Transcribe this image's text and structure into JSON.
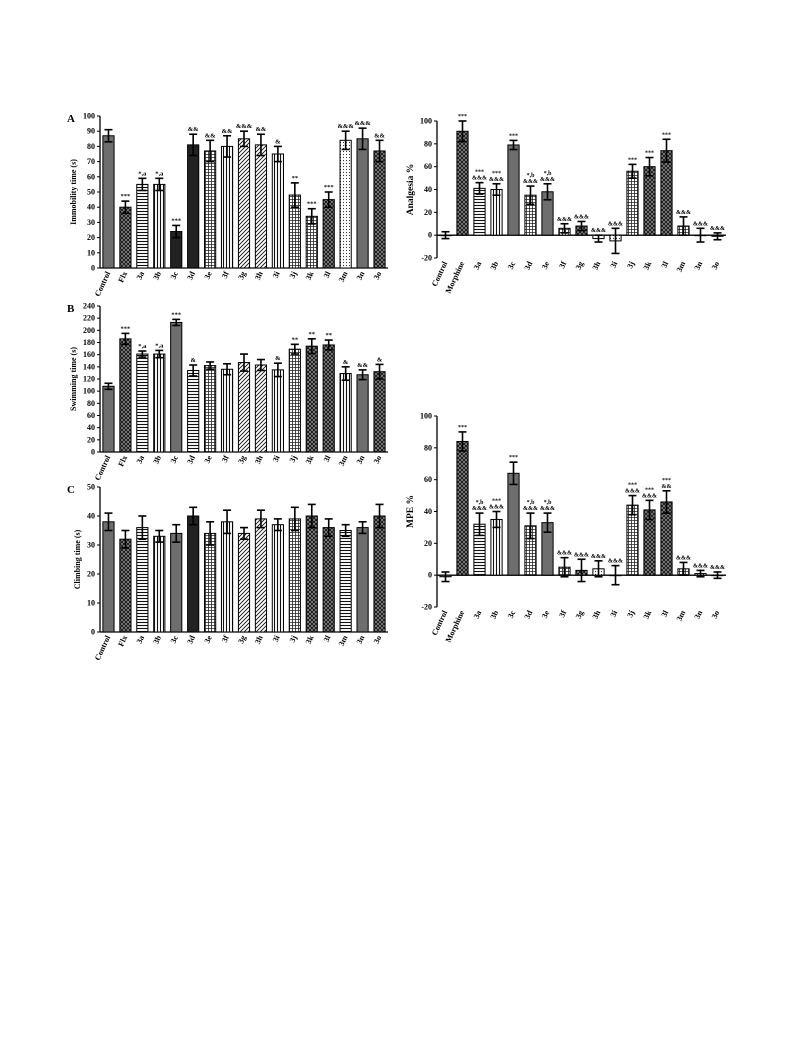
{
  "panel_labels": {
    "A": "A",
    "B": "B",
    "C": "C"
  },
  "colors": {
    "bar_fill": "#6e6e6e",
    "dark": "#222222",
    "ink": "#000000",
    "background": "#ffffff"
  },
  "chart_data": [
    {
      "id": "immobility",
      "type": "bar",
      "ylabel": "Immobility time (s)",
      "ylim": [
        0,
        100
      ],
      "ytick_step": 10,
      "categories": [
        "Control",
        "Flx",
        "3a",
        "3b",
        "3c",
        "3d",
        "3e",
        "3f",
        "3g",
        "3h",
        "3i",
        "3j",
        "3k",
        "3l",
        "3m",
        "3n",
        "3o"
      ],
      "values": [
        87,
        40,
        55,
        55,
        24,
        81,
        77,
        80,
        85,
        81,
        75,
        48,
        34,
        45,
        84,
        85,
        77
      ],
      "errors": [
        4,
        4,
        4,
        4,
        4,
        7,
        7,
        7,
        5,
        7,
        5,
        8,
        5,
        5,
        6,
        7,
        7
      ],
      "annotations": [
        "",
        "***",
        "*,a",
        "*,a",
        "***",
        "&&",
        "&&",
        "&&",
        "&&&",
        "&&",
        "&",
        "**",
        "***",
        "***",
        "&&&",
        "&&&",
        "&&"
      ],
      "patterns": [
        "solid",
        "cross",
        "hlines",
        "vlines",
        "dark",
        "dark",
        "grid",
        "vlines",
        "diag",
        "diag",
        "vlines",
        "grid",
        "grid",
        "cross",
        "dots",
        "solid",
        "cross"
      ]
    },
    {
      "id": "analgesia",
      "type": "bar",
      "ylabel": "Analgesia %",
      "ylim": [
        -20,
        100
      ],
      "ytick_step": 20,
      "categories": [
        "Control",
        "Morphine",
        "3a",
        "3b",
        "3c",
        "3d",
        "3e",
        "3f",
        "3g",
        "3h",
        "3i",
        "3j",
        "3k",
        "3l",
        "3m",
        "3n",
        "3o"
      ],
      "values": [
        0,
        91,
        41,
        40,
        79,
        35,
        38,
        6,
        8,
        -3,
        -5,
        56,
        60,
        74,
        8,
        0,
        -1
      ],
      "errors": [
        3,
        9,
        5,
        5,
        4,
        8,
        7,
        4,
        4,
        3,
        11,
        6,
        8,
        10,
        8,
        6,
        3
      ],
      "annotations": [
        "",
        "***",
        "***,&&&",
        "***,&&&",
        "***",
        "*,b,&&&",
        "*,b,&&&",
        "&&&",
        "&&&",
        "&&&",
        "&&&",
        "***",
        "***",
        "***",
        "&&&",
        "&&&",
        "&&&"
      ],
      "patterns": [
        "solid",
        "cross",
        "hlines",
        "vlines",
        "solid",
        "grid",
        "solid",
        "grid",
        "cross",
        "dots",
        "dots",
        "grid",
        "cross",
        "cross",
        "grid",
        "vlines",
        "grid"
      ]
    },
    {
      "id": "swimming",
      "type": "bar",
      "ylabel": "Swimming time (s)",
      "ylim": [
        0,
        240
      ],
      "ytick_step": 20,
      "categories": [
        "Control",
        "Flx",
        "3a",
        "3b",
        "3c",
        "3d",
        "3e",
        "3f",
        "3g",
        "3h",
        "3i",
        "3j",
        "3k",
        "3l",
        "3m",
        "3n",
        "3o"
      ],
      "values": [
        108,
        186,
        161,
        161,
        213,
        134,
        142,
        136,
        147,
        143,
        135,
        169,
        174,
        176,
        129,
        127,
        132
      ],
      "errors": [
        5,
        9,
        5,
        6,
        5,
        9,
        6,
        9,
        14,
        9,
        11,
        8,
        12,
        8,
        11,
        8,
        12
      ],
      "annotations": [
        "",
        "***",
        "*,a",
        "*,a",
        "***",
        "&",
        "",
        "",
        "",
        "",
        "&",
        "**",
        "**",
        "**",
        "&",
        "&&",
        "&"
      ],
      "patterns": [
        "solid",
        "cross",
        "hlines",
        "vlines",
        "solid",
        "hlines",
        "grid",
        "vlines",
        "diag",
        "diag",
        "vlines",
        "grid",
        "cross",
        "cross",
        "vlines",
        "solid",
        "cross"
      ]
    },
    {
      "id": "mpe",
      "type": "bar",
      "ylabel": "MPE %",
      "ylim": [
        -20,
        100
      ],
      "ytick_step": 20,
      "categories": [
        "Control",
        "Morphine",
        "3a",
        "3b",
        "3c",
        "3d",
        "3e",
        "3f",
        "3g",
        "3h",
        "3i",
        "3j",
        "3k",
        "3l",
        "3m",
        "3n",
        "3o"
      ],
      "values": [
        -1,
        84,
        32,
        35,
        64,
        31,
        33,
        5,
        3,
        4,
        0,
        44,
        41,
        46,
        4,
        1,
        0
      ],
      "errors": [
        3,
        6,
        7,
        5,
        7,
        8,
        6,
        6,
        7,
        5,
        6,
        6,
        6,
        7,
        4,
        2,
        2
      ],
      "annotations": [
        "",
        "***",
        "*,b,&&&",
        "***,&&&",
        "***",
        "*,b,&&&",
        "*,b,&&&",
        "&&&",
        "&&&",
        "&&&",
        "&&&",
        "***,&&&",
        "***,&&&",
        "***,&&",
        "&&&",
        "&&&",
        "&&&"
      ],
      "patterns": [
        "solid",
        "cross",
        "hlines",
        "vlines",
        "solid",
        "grid",
        "solid",
        "grid",
        "cross",
        "dots",
        "dots",
        "grid",
        "cross",
        "cross",
        "grid",
        "vlines",
        "grid"
      ]
    },
    {
      "id": "climbing",
      "type": "bar",
      "ylabel": "Climbing time (s)",
      "ylim": [
        0,
        50
      ],
      "ytick_step": 10,
      "categories": [
        "Control",
        "Flx",
        "3a",
        "3b",
        "3c",
        "3d",
        "3e",
        "3f",
        "3g",
        "3h",
        "3i",
        "3j",
        "3k",
        "3l",
        "3m",
        "3n",
        "3o"
      ],
      "values": [
        38,
        32,
        36,
        33,
        34,
        40,
        34,
        38,
        34,
        39,
        37,
        39,
        40,
        36,
        35,
        36,
        40
      ],
      "errors": [
        3,
        3,
        4,
        2,
        3,
        3,
        4,
        4,
        2,
        3,
        2,
        4,
        4,
        3,
        2,
        2,
        4
      ],
      "annotations": [
        "",
        "",
        "",
        "",
        "",
        "",
        "",
        "",
        "",
        "",
        "",
        "",
        "",
        "",
        "",
        "",
        ""
      ],
      "patterns": [
        "solid",
        "cross",
        "hlines",
        "vlines",
        "solid",
        "dark",
        "grid",
        "vlines",
        "diag",
        "diag",
        "vlines",
        "grid",
        "cross",
        "cross",
        "hlines",
        "solid",
        "cross"
      ]
    }
  ]
}
